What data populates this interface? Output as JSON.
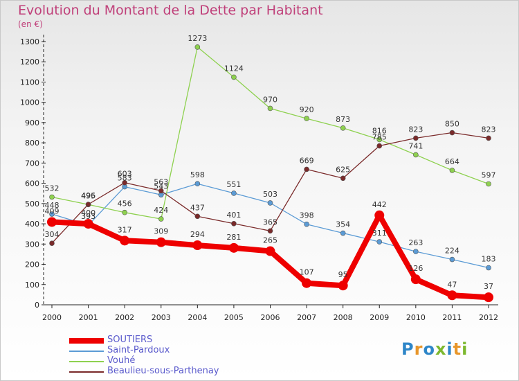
{
  "title": "Evolution du Montant de la Dette par Habitant",
  "subtitle": "(en €)",
  "logo": {
    "text": "Proxiti",
    "colors": [
      "#2e86c8",
      "#e8962a",
      "#2e86c8",
      "#7cb82e",
      "#2e86c8",
      "#e8962a",
      "#7cb82e"
    ]
  },
  "chart_data": {
    "type": "line",
    "title": "Evolution du Montant de la Dette par Habitant",
    "ylabel": "(en €)",
    "xlabel": "",
    "ylim": [
      0,
      1300
    ],
    "yticks": [
      0,
      100,
      200,
      300,
      400,
      500,
      600,
      700,
      800,
      900,
      1000,
      1100,
      1200,
      1300
    ],
    "grid": false,
    "legend": "bottom-left",
    "x": [
      "2000",
      "2001",
      "2002",
      "2003",
      "2004",
      "2005",
      "2006",
      "2007",
      "2008",
      "2009",
      "2010",
      "2011",
      "2012"
    ],
    "series": [
      {
        "name": "SOUTIERS",
        "color": "#ee0000",
        "values": [
          409,
          400,
          317,
          309,
          294,
          281,
          265,
          107,
          95,
          442,
          126,
          47,
          37
        ],
        "labels": [
          "409",
          "400",
          "317",
          "309",
          "294",
          "281",
          "265",
          "107",
          "95",
          "442",
          "126",
          "47",
          "37"
        ]
      },
      {
        "name": "Saint-Pardoux",
        "color": "#5b9bd5",
        "values": [
          448,
          393,
          583,
          543,
          598,
          551,
          503,
          398,
          354,
          311,
          263,
          224,
          183
        ],
        "labels": [
          "448",
          "393",
          "583",
          "543",
          "598",
          "551",
          "503",
          "398",
          "354",
          "311",
          "263",
          "224",
          "183"
        ]
      },
      {
        "name": "Vouhé",
        "color": "#8ed14f",
        "values": [
          532,
          495,
          456,
          424,
          1273,
          1124,
          970,
          920,
          873,
          816,
          741,
          664,
          597
        ],
        "labels": [
          "532",
          "495",
          "456",
          "424",
          "1273",
          "1124",
          "970",
          "920",
          "873",
          "816",
          "741",
          "664",
          "597"
        ]
      },
      {
        "name": "Beaulieu-sous-Parthenay",
        "color": "#7a2a2a",
        "values": [
          304,
          496,
          603,
          563,
          437,
          401,
          365,
          669,
          625,
          785,
          823,
          850,
          823
        ],
        "labels": [
          "304",
          "496",
          "603",
          "563",
          "437",
          "401",
          "365",
          "669",
          "625",
          "785",
          "823",
          "850",
          "823"
        ]
      }
    ]
  }
}
